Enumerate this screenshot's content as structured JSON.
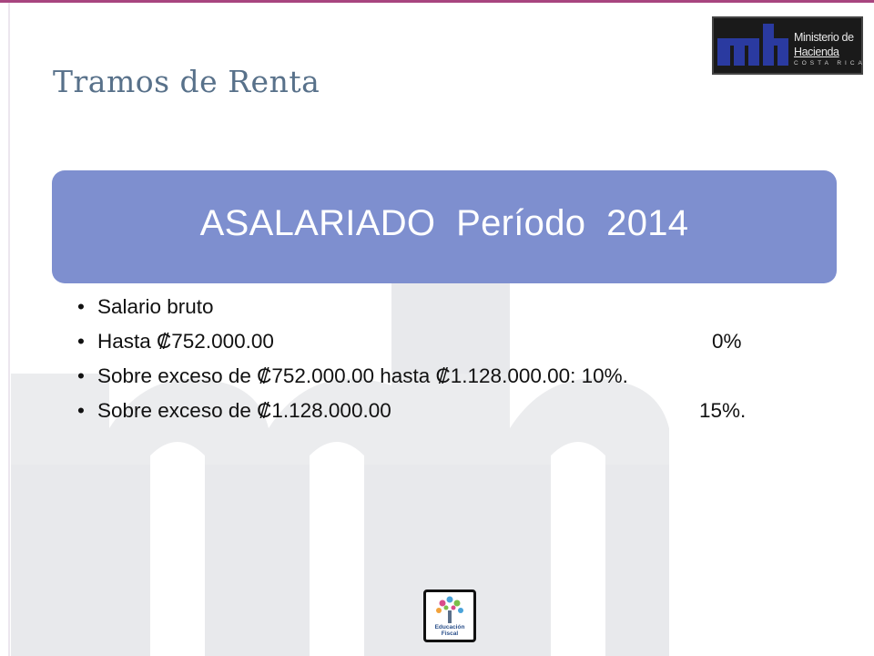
{
  "slide": {
    "title": "Tramos de Renta",
    "header": "ASALARIADO  Período  2014"
  },
  "logo": {
    "name": "Ministerio de Hacienda",
    "line1": "Ministerio de",
    "line2": "Hacienda",
    "line3": "COSTA RICA"
  },
  "bullets": [
    {
      "label": "Salario bruto",
      "rate": ""
    },
    {
      "label": "Hasta ₡752.000.00",
      "rate": "0%"
    },
    {
      "label": "Sobre exceso de ₡752.000.00 hasta ₡1.128.000.00: 10%.",
      "rate": ""
    },
    {
      "label": "Sobre exceso de ₡1.128.000.00",
      "rate": "15%."
    }
  ],
  "bullet_symbol": "•",
  "education_logo": {
    "line1": "Educación",
    "line2": "Fiscal"
  },
  "colors": {
    "accent_rule": "#a8457f",
    "title": "#58718a",
    "header_box": "#7e8fcf",
    "watermark": "#e9eaee"
  }
}
